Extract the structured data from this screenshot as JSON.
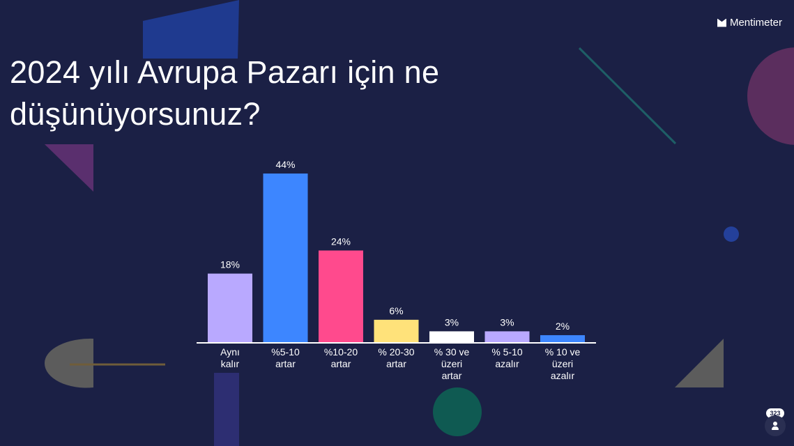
{
  "brand": {
    "name": "Mentimeter",
    "icon": "mentimeter-logo-icon"
  },
  "question": {
    "title": "2024 yılı Avrupa Pazarı için ne düşünüyorsunuz?"
  },
  "participants": {
    "count": "323",
    "icon": "person-icon"
  },
  "chart_data": {
    "type": "bar",
    "categories": [
      [
        "Aynı",
        "kalır"
      ],
      [
        "%5-10",
        "artar"
      ],
      [
        "%10-20",
        "artar"
      ],
      [
        "% 20-30",
        "artar"
      ],
      [
        "% 30 ve",
        "üzeri",
        "artar"
      ],
      [
        "% 5-10",
        "azalır"
      ],
      [
        "% 10 ve",
        "üzeri",
        "azalır"
      ]
    ],
    "values": [
      18,
      44,
      24,
      6,
      3,
      3,
      2
    ],
    "value_labels": [
      "18%",
      "44%",
      "24%",
      "6%",
      "3%",
      "3%",
      "2%"
    ],
    "colors": [
      "#b9a9ff",
      "#3d86ff",
      "#ff4a8d",
      "#ffe27a",
      "#ffffff",
      "#b9a9ff",
      "#3d86ff"
    ],
    "ylim": [
      0,
      44
    ],
    "grid": false,
    "legend": "none"
  }
}
